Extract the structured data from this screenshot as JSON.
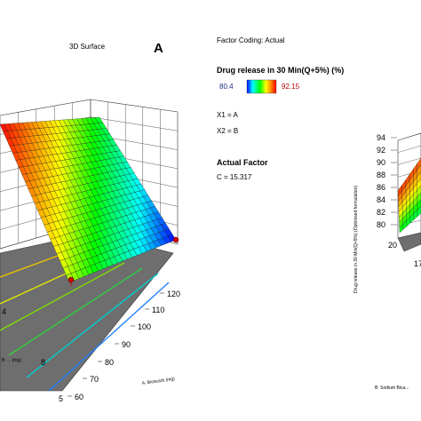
{
  "panel_label": "A",
  "surface_title": "3D Surface",
  "factor_coding": "Factor Coding: Actual",
  "legend": {
    "title": "Drug release in 30 Min(Q+5%) (%)",
    "min_label": "80.4",
    "max_label": "92.15",
    "colors": [
      "#0000ff",
      "#00ffff",
      "#00ff00",
      "#ffff00",
      "#ff8800",
      "#ff0000"
    ]
  },
  "factors": {
    "x1": "X1 = A",
    "x2": "X2 = B",
    "actual_title": "Actual Factor",
    "actual_value": "C = 15.317"
  },
  "chart_data": [
    {
      "type": "surface",
      "title": "3D Surface",
      "xlabel": "A: Bioscarb (mg)",
      "ylabel": "B: ... (mg)",
      "zlabel": "Drug release in 30 Min(Q+5%) (%)",
      "x_ticks": [
        "60",
        "70",
        "80",
        "90",
        "100",
        "110",
        "120"
      ],
      "y_ticks": [
        "5",
        "8",
        "4"
      ],
      "zlim": [
        80.4,
        92.15
      ],
      "grid": true,
      "colormap": "blue-cyan-green-yellow-red"
    },
    {
      "type": "surface",
      "ylabel": "Drug release in 30 Min(Q+5%) (Optimised formulation)",
      "xlabel": "B: Sodium Bica...",
      "z_ticks": [
        "80",
        "82",
        "84",
        "86",
        "88",
        "90",
        "92",
        "94"
      ],
      "bottom_ticks": [
        "20",
        "17"
      ],
      "grid": true
    }
  ]
}
